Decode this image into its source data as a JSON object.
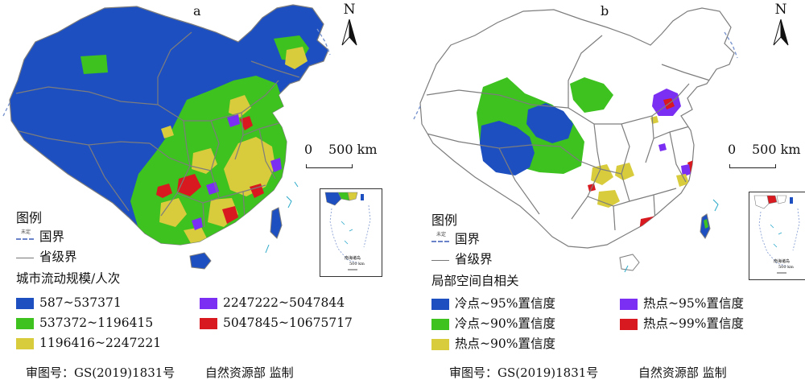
{
  "colors": {
    "blue": "#1d4fc0",
    "green": "#3dc21f",
    "yellow": "#d8cc3c",
    "purple": "#7b2ff2",
    "red": "#d8191f",
    "border": "#7d7d7d",
    "sea_island": "#2aa9c9",
    "blank": "#ffffff"
  },
  "common": {
    "north_letter": "N",
    "scale_zero": "0",
    "scale_text": "500 km",
    "legend_title": "图例",
    "national_border": "国界",
    "provincial_border": "省级界",
    "undetermined_tag": "未定",
    "south_sea_label": "南海诸岛",
    "inset_scale_text": "500 km",
    "approval_number": "审图号：GS(2019)1831号",
    "supervisor": "自然资源部 监制"
  },
  "panels": [
    {
      "letter": "a",
      "legend_subtitle": "城市流动规模/人次",
      "classes": [
        {
          "label": "587~537371",
          "color": "#1d4fc0"
        },
        {
          "label": "537372~1196415",
          "color": "#3dc21f"
        },
        {
          "label": "1196416~2247221",
          "color": "#d8cc3c"
        },
        {
          "label": "2247222~5047844",
          "color": "#7b2ff2"
        },
        {
          "label": "5047845~10675717",
          "color": "#d8191f"
        }
      ]
    },
    {
      "letter": "b",
      "legend_subtitle": "局部空间自相关",
      "classes": [
        {
          "label": "冷点~95%置信度",
          "color": "#1d4fc0"
        },
        {
          "label": "冷点~90%置信度",
          "color": "#3dc21f"
        },
        {
          "label": "热点~90%置信度",
          "color": "#d8cc3c"
        },
        {
          "label": "热点~95%置信度",
          "color": "#7b2ff2"
        },
        {
          "label": "热点~99%置信度",
          "color": "#d8191f"
        }
      ]
    }
  ]
}
